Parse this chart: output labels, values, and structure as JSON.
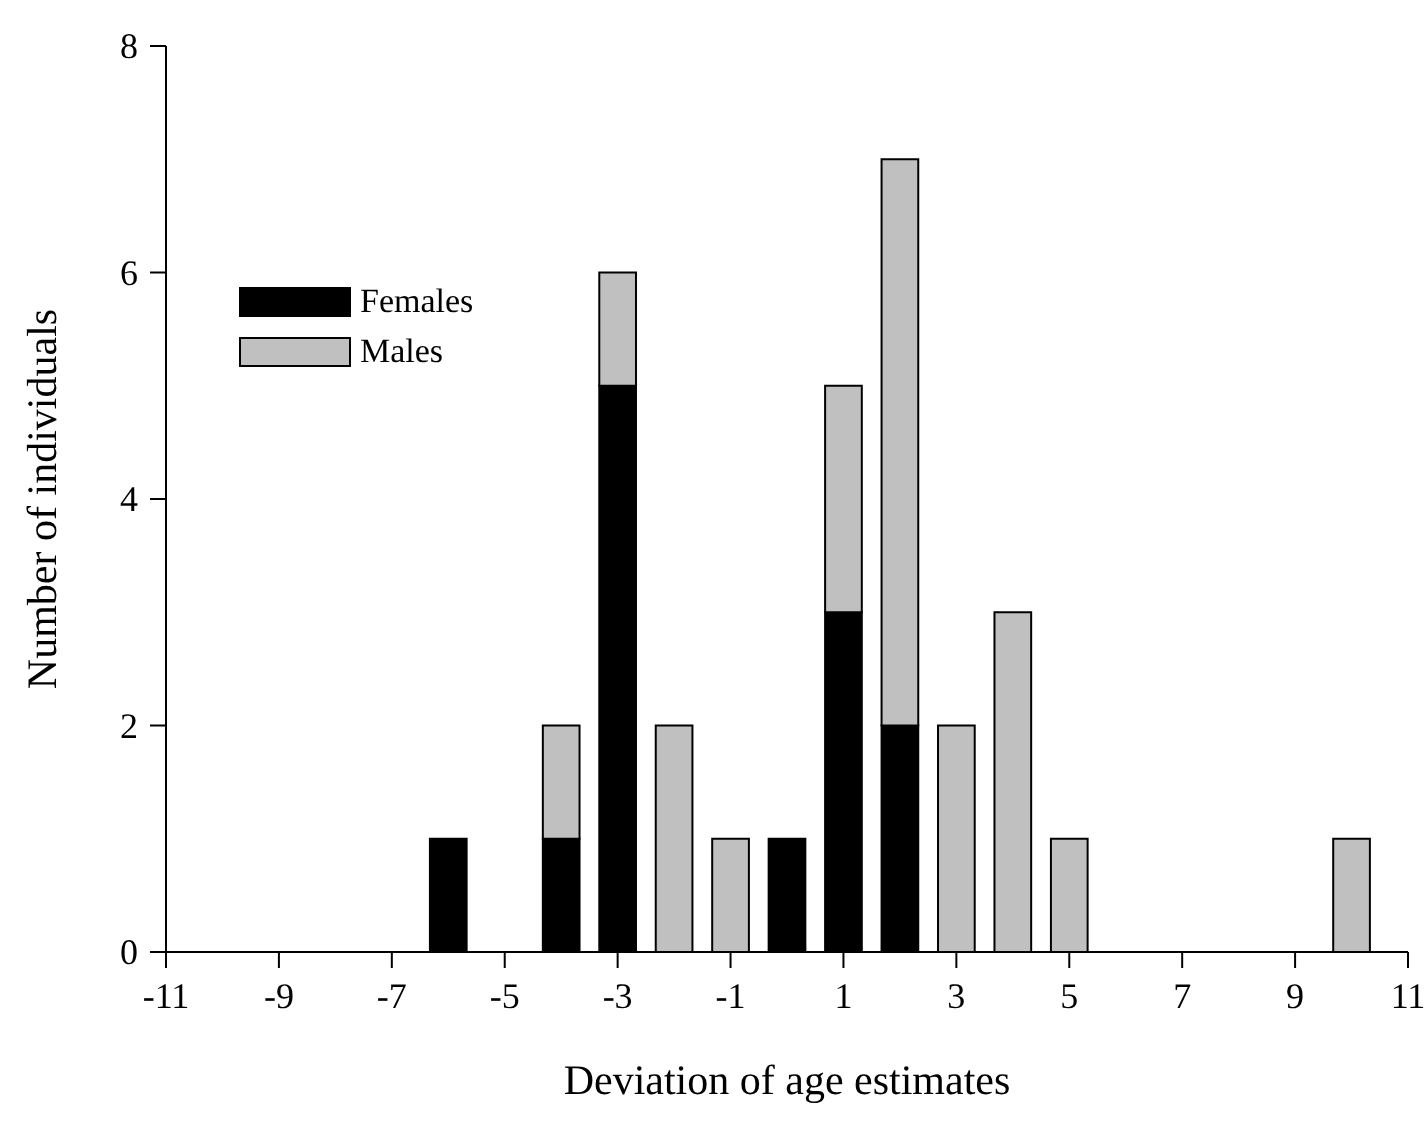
{
  "chart_data": {
    "type": "bar",
    "stacked": true,
    "xlabel": "Deviation of age estimates",
    "ylabel": "Number of individuals",
    "x": [
      -6,
      -4,
      -3,
      -2,
      -1,
      0,
      1,
      2,
      3,
      4,
      5,
      10
    ],
    "series": [
      {
        "name": "Females",
        "color": "#000000",
        "values": [
          1,
          1,
          5,
          0,
          0,
          1,
          3,
          2,
          0,
          0,
          0,
          0
        ]
      },
      {
        "name": "Males",
        "color": "#c0c0c0",
        "values": [
          0,
          1,
          1,
          2,
          1,
          0,
          2,
          5,
          2,
          3,
          1,
          1
        ]
      }
    ],
    "xlim": [
      -11,
      11
    ],
    "xticks": [
      -11,
      -9,
      -7,
      -5,
      -3,
      -1,
      1,
      3,
      5,
      7,
      9,
      11
    ],
    "ylim": [
      0,
      8
    ],
    "yticks": [
      0,
      2,
      4,
      6,
      8
    ],
    "grid": false,
    "legend": "top left"
  }
}
